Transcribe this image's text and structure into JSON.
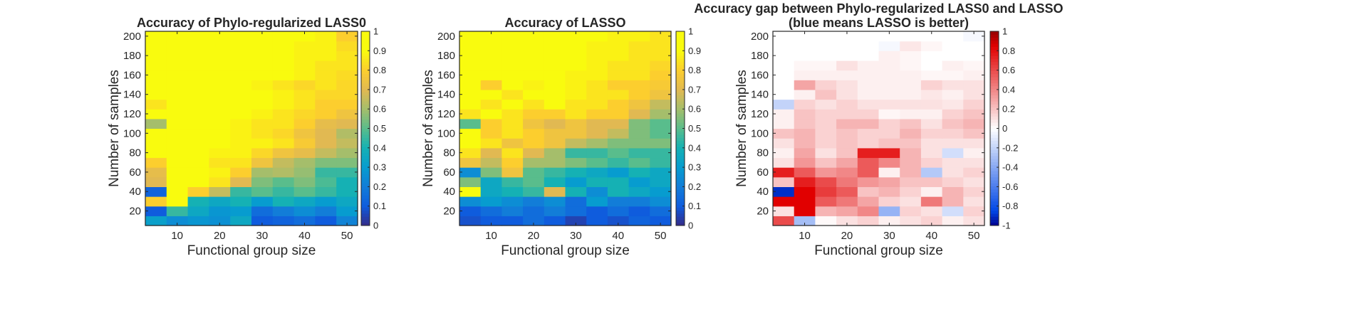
{
  "figure": {
    "panels": [
      {
        "title_lines": [
          "Accuracy of Phylo-regularized LASS0"
        ]
      },
      {
        "title_lines": [
          "Accuracy of LASSO"
        ]
      },
      {
        "title_lines": [
          "Accuracy gap between Phylo-regularized LASS0 and LASSO",
          "(blue means LASSO is better)"
        ]
      }
    ]
  },
  "chart_data": [
    {
      "type": "heatmap",
      "title": "Accuracy of Phylo-regularized LASS0",
      "xlabel": "Functional group size",
      "ylabel": "Number of samples",
      "x_tick_labels": [
        "10",
        "20",
        "30",
        "40",
        "50"
      ],
      "y_tick_labels": [
        "20",
        "40",
        "60",
        "80",
        "100",
        "120",
        "140",
        "160",
        "180",
        "200"
      ],
      "x_centers": [
        5,
        10,
        15,
        20,
        25,
        30,
        35,
        40,
        45,
        50
      ],
      "y_centers": [
        10,
        20,
        30,
        40,
        50,
        60,
        70,
        80,
        90,
        100,
        110,
        120,
        130,
        140,
        150,
        160,
        170,
        180,
        190,
        200
      ],
      "xlim": [
        2.5,
        52.5
      ],
      "ylim": [
        5,
        205
      ],
      "colormap": "parula",
      "colorbar": {
        "range": [
          0,
          1
        ],
        "tick_labels": [
          "0",
          "0.1",
          "0.2",
          "0.3",
          "0.4",
          "0.5",
          "0.6",
          "0.7",
          "0.8",
          "0.9",
          "1"
        ]
      },
      "values": [
        [
          0.32,
          0.25,
          0.28,
          0.26,
          0.35,
          0.1,
          0.12,
          0.15,
          0.1,
          0.22
        ],
        [
          0.1,
          0.45,
          0.35,
          0.28,
          0.3,
          0.15,
          0.2,
          0.25,
          0.2,
          0.3
        ],
        [
          0.8,
          0.95,
          0.4,
          0.35,
          0.4,
          0.3,
          0.4,
          0.35,
          0.3,
          0.35
        ],
        [
          0.12,
          0.95,
          0.8,
          0.65,
          0.45,
          0.5,
          0.45,
          0.5,
          0.45,
          0.4
        ],
        [
          0.7,
          0.95,
          0.95,
          0.85,
          0.7,
          0.55,
          0.5,
          0.55,
          0.48,
          0.4
        ],
        [
          0.72,
          0.95,
          0.95,
          0.88,
          0.8,
          0.6,
          0.62,
          0.58,
          0.45,
          0.45
        ],
        [
          0.8,
          0.95,
          0.9,
          0.85,
          0.85,
          0.75,
          0.65,
          0.6,
          0.55,
          0.55
        ],
        [
          0.95,
          0.95,
          0.92,
          0.88,
          0.88,
          0.82,
          0.75,
          0.72,
          0.65,
          0.6
        ],
        [
          0.95,
          0.95,
          0.92,
          0.92,
          0.88,
          0.88,
          0.85,
          0.78,
          0.7,
          0.65
        ],
        [
          0.95,
          0.95,
          0.95,
          0.92,
          0.88,
          0.85,
          0.82,
          0.75,
          0.7,
          0.62
        ],
        [
          0.6,
          0.95,
          0.92,
          0.92,
          0.88,
          0.85,
          0.85,
          0.8,
          0.72,
          0.7
        ],
        [
          0.95,
          0.95,
          0.92,
          0.9,
          0.9,
          0.88,
          0.85,
          0.82,
          0.8,
          0.75
        ],
        [
          0.85,
          0.95,
          0.95,
          0.92,
          0.92,
          0.9,
          0.88,
          0.85,
          0.8,
          0.8
        ],
        [
          0.95,
          0.95,
          0.95,
          0.92,
          0.9,
          0.9,
          0.88,
          0.85,
          0.82,
          0.82
        ],
        [
          0.95,
          0.95,
          0.95,
          0.92,
          0.92,
          0.88,
          0.85,
          0.82,
          0.85,
          0.82
        ],
        [
          0.95,
          0.95,
          0.95,
          0.93,
          0.92,
          0.9,
          0.9,
          0.88,
          0.85,
          0.83
        ],
        [
          0.95,
          0.95,
          0.95,
          0.93,
          0.92,
          0.92,
          0.9,
          0.88,
          0.85,
          0.85
        ],
        [
          0.95,
          0.95,
          0.95,
          0.93,
          0.92,
          0.9,
          0.9,
          0.88,
          0.88,
          0.85
        ],
        [
          0.95,
          0.95,
          0.95,
          0.93,
          0.92,
          0.92,
          0.9,
          0.88,
          0.88,
          0.83
        ],
        [
          0.95,
          0.95,
          0.95,
          0.93,
          0.92,
          0.92,
          0.9,
          0.9,
          0.88,
          0.8
        ]
      ]
    },
    {
      "type": "heatmap",
      "title": "Accuracy of LASSO",
      "xlabel": "Functional group size",
      "ylabel": "Number of samples",
      "x_tick_labels": [
        "10",
        "20",
        "30",
        "40",
        "50"
      ],
      "y_tick_labels": [
        "20",
        "40",
        "60",
        "80",
        "100",
        "120",
        "140",
        "160",
        "180",
        "200"
      ],
      "x_centers": [
        5,
        10,
        15,
        20,
        25,
        30,
        35,
        40,
        45,
        50
      ],
      "y_centers": [
        10,
        20,
        30,
        40,
        50,
        60,
        70,
        80,
        90,
        100,
        110,
        120,
        130,
        140,
        150,
        160,
        170,
        180,
        190,
        200
      ],
      "xlim": [
        2.5,
        52.5
      ],
      "ylim": [
        5,
        205
      ],
      "colormap": "parula",
      "colorbar": {
        "range": [
          0,
          1
        ],
        "tick_labels": [
          "0",
          "0.1",
          "0.2",
          "0.3",
          "0.4",
          "0.5",
          "0.6",
          "0.7",
          "0.8",
          "0.9",
          "1"
        ]
      },
      "values": [
        [
          0.08,
          0.1,
          0.1,
          0.15,
          0.1,
          0.05,
          0.1,
          0.08,
          0.12,
          0.1
        ],
        [
          0.1,
          0.15,
          0.2,
          0.15,
          0.2,
          0.15,
          0.1,
          0.15,
          0.1,
          0.15
        ],
        [
          0.25,
          0.3,
          0.25,
          0.2,
          0.25,
          0.15,
          0.3,
          0.2,
          0.2,
          0.25
        ],
        [
          0.95,
          0.35,
          0.4,
          0.45,
          0.7,
          0.4,
          0.25,
          0.4,
          0.35,
          0.3
        ],
        [
          0.55,
          0.35,
          0.45,
          0.5,
          0.4,
          0.3,
          0.4,
          0.4,
          0.3,
          0.35
        ],
        [
          0.25,
          0.55,
          0.75,
          0.5,
          0.45,
          0.4,
          0.35,
          0.3,
          0.4,
          0.35
        ],
        [
          0.75,
          0.65,
          0.8,
          0.6,
          0.6,
          0.55,
          0.5,
          0.45,
          0.5,
          0.45
        ],
        [
          0.85,
          0.7,
          0.85,
          0.7,
          0.6,
          0.45,
          0.45,
          0.5,
          0.45,
          0.45
        ],
        [
          0.9,
          0.85,
          0.75,
          0.8,
          0.75,
          0.65,
          0.6,
          0.55,
          0.55,
          0.55
        ],
        [
          0.95,
          0.8,
          0.85,
          0.8,
          0.75,
          0.75,
          0.7,
          0.65,
          0.55,
          0.5
        ],
        [
          0.5,
          0.8,
          0.85,
          0.75,
          0.7,
          0.75,
          0.7,
          0.7,
          0.55,
          0.5
        ],
        [
          0.85,
          0.9,
          0.85,
          0.8,
          0.8,
          0.85,
          0.8,
          0.8,
          0.7,
          0.6
        ],
        [
          0.95,
          0.85,
          0.9,
          0.85,
          0.9,
          0.85,
          0.85,
          0.8,
          0.75,
          0.65
        ],
        [
          0.95,
          0.95,
          0.85,
          0.9,
          0.9,
          0.88,
          0.85,
          0.85,
          0.8,
          0.75
        ],
        [
          0.95,
          0.8,
          0.9,
          0.88,
          0.9,
          0.88,
          0.85,
          0.8,
          0.8,
          0.78
        ],
        [
          0.95,
          0.92,
          0.92,
          0.92,
          0.9,
          0.88,
          0.88,
          0.85,
          0.85,
          0.8
        ],
        [
          0.95,
          0.92,
          0.93,
          0.92,
          0.9,
          0.9,
          0.88,
          0.85,
          0.85,
          0.82
        ],
        [
          0.95,
          0.95,
          0.93,
          0.93,
          0.9,
          0.9,
          0.88,
          0.88,
          0.85,
          0.85
        ],
        [
          0.95,
          0.95,
          0.93,
          0.93,
          0.92,
          0.9,
          0.88,
          0.88,
          0.85,
          0.85
        ],
        [
          0.95,
          0.95,
          0.95,
          0.93,
          0.92,
          0.92,
          0.9,
          0.88,
          0.88,
          0.85
        ]
      ]
    },
    {
      "type": "heatmap",
      "title": "Accuracy gap between Phylo-regularized LASS0 and LASSO (blue means LASSO is better)",
      "xlabel": "Functional group size",
      "ylabel": "Number of samples",
      "x_tick_labels": [
        "10",
        "20",
        "30",
        "40",
        "50"
      ],
      "y_tick_labels": [
        "20",
        "40",
        "60",
        "80",
        "100",
        "120",
        "140",
        "160",
        "180",
        "200"
      ],
      "x_centers": [
        5,
        10,
        15,
        20,
        25,
        30,
        35,
        40,
        45,
        50
      ],
      "y_centers": [
        10,
        20,
        30,
        40,
        50,
        60,
        70,
        80,
        90,
        100,
        110,
        120,
        130,
        140,
        150,
        160,
        170,
        180,
        190,
        200
      ],
      "xlim": [
        2.5,
        52.5
      ],
      "ylim": [
        5,
        205
      ],
      "colormap": "blue-white-red",
      "colorbar": {
        "range": [
          -1,
          1
        ],
        "tick_labels": [
          "-1",
          "-0.8",
          "-0.6",
          "-0.4",
          "-0.2",
          "0",
          "0.2",
          "0.4",
          "0.6",
          "0.8",
          "1"
        ]
      },
      "values": [
        [
          0.6,
          -0.3,
          0.02,
          0.1,
          0.15,
          0.05,
          0.1,
          0.15,
          0.05,
          0.1
        ],
        [
          0.1,
          0.85,
          0.25,
          0.3,
          0.4,
          -0.35,
          0.15,
          0.1,
          -0.15,
          0.15
        ],
        [
          0.85,
          0.85,
          0.55,
          0.45,
          0.3,
          0.15,
          0.1,
          0.45,
          0.25,
          0.1
        ],
        [
          -0.9,
          0.85,
          0.65,
          0.55,
          0.2,
          0.25,
          0.15,
          0.05,
          0.25,
          0.15
        ],
        [
          0.2,
          0.75,
          0.6,
          0.45,
          0.35,
          0.3,
          0.2,
          0.2,
          0.15,
          0.1
        ],
        [
          0.75,
          0.55,
          0.35,
          0.4,
          0.55,
          0.05,
          0.25,
          -0.25,
          0.1,
          0.15
        ],
        [
          0.1,
          0.35,
          0.2,
          0.3,
          0.55,
          0.4,
          0.25,
          0.15,
          0.1,
          0.1
        ],
        [
          0.05,
          0.3,
          0.1,
          0.2,
          0.75,
          0.75,
          0.25,
          0.1,
          -0.15,
          0.05
        ],
        [
          0.1,
          0.25,
          0.15,
          0.2,
          0.15,
          0.2,
          0.2,
          0.1,
          0.1,
          0.1
        ],
        [
          0.2,
          0.25,
          0.15,
          0.2,
          0.15,
          0.15,
          0.25,
          0.15,
          0.15,
          0.2
        ],
        [
          0.05,
          0.2,
          0.15,
          0.25,
          0.25,
          0.15,
          0.2,
          0.1,
          0.2,
          0.25
        ],
        [
          0.05,
          0.2,
          0.15,
          0.15,
          0.15,
          0.03,
          0.05,
          0.05,
          0.15,
          0.2
        ],
        [
          -0.2,
          0.15,
          0.1,
          0.15,
          0.1,
          0.1,
          0.1,
          0.1,
          0.08,
          0.15
        ],
        [
          0.0,
          0.05,
          0.2,
          0.1,
          0.05,
          0.05,
          0.05,
          0.08,
          0.05,
          0.1
        ],
        [
          0.0,
          0.3,
          0.15,
          0.1,
          0.05,
          0.05,
          0.05,
          0.15,
          0.1,
          0.1
        ],
        [
          0.0,
          0.05,
          0.05,
          0.05,
          0.05,
          0.05,
          0.05,
          0.03,
          0.03,
          0.05
        ],
        [
          0.0,
          0.03,
          0.03,
          0.1,
          0.05,
          0.05,
          0.03,
          0.0,
          0.05,
          0.03
        ],
        [
          0.0,
          0.0,
          0.0,
          0.0,
          0.0,
          0.05,
          0.03,
          0.0,
          0.0,
          0.0
        ],
        [
          0.0,
          0.0,
          0.0,
          0.0,
          0.0,
          -0.03,
          0.08,
          0.03,
          0.0,
          0.0
        ],
        [
          0.0,
          0.0,
          0.0,
          0.0,
          0.0,
          0.0,
          0.0,
          0.0,
          0.0,
          -0.03
        ]
      ]
    }
  ]
}
